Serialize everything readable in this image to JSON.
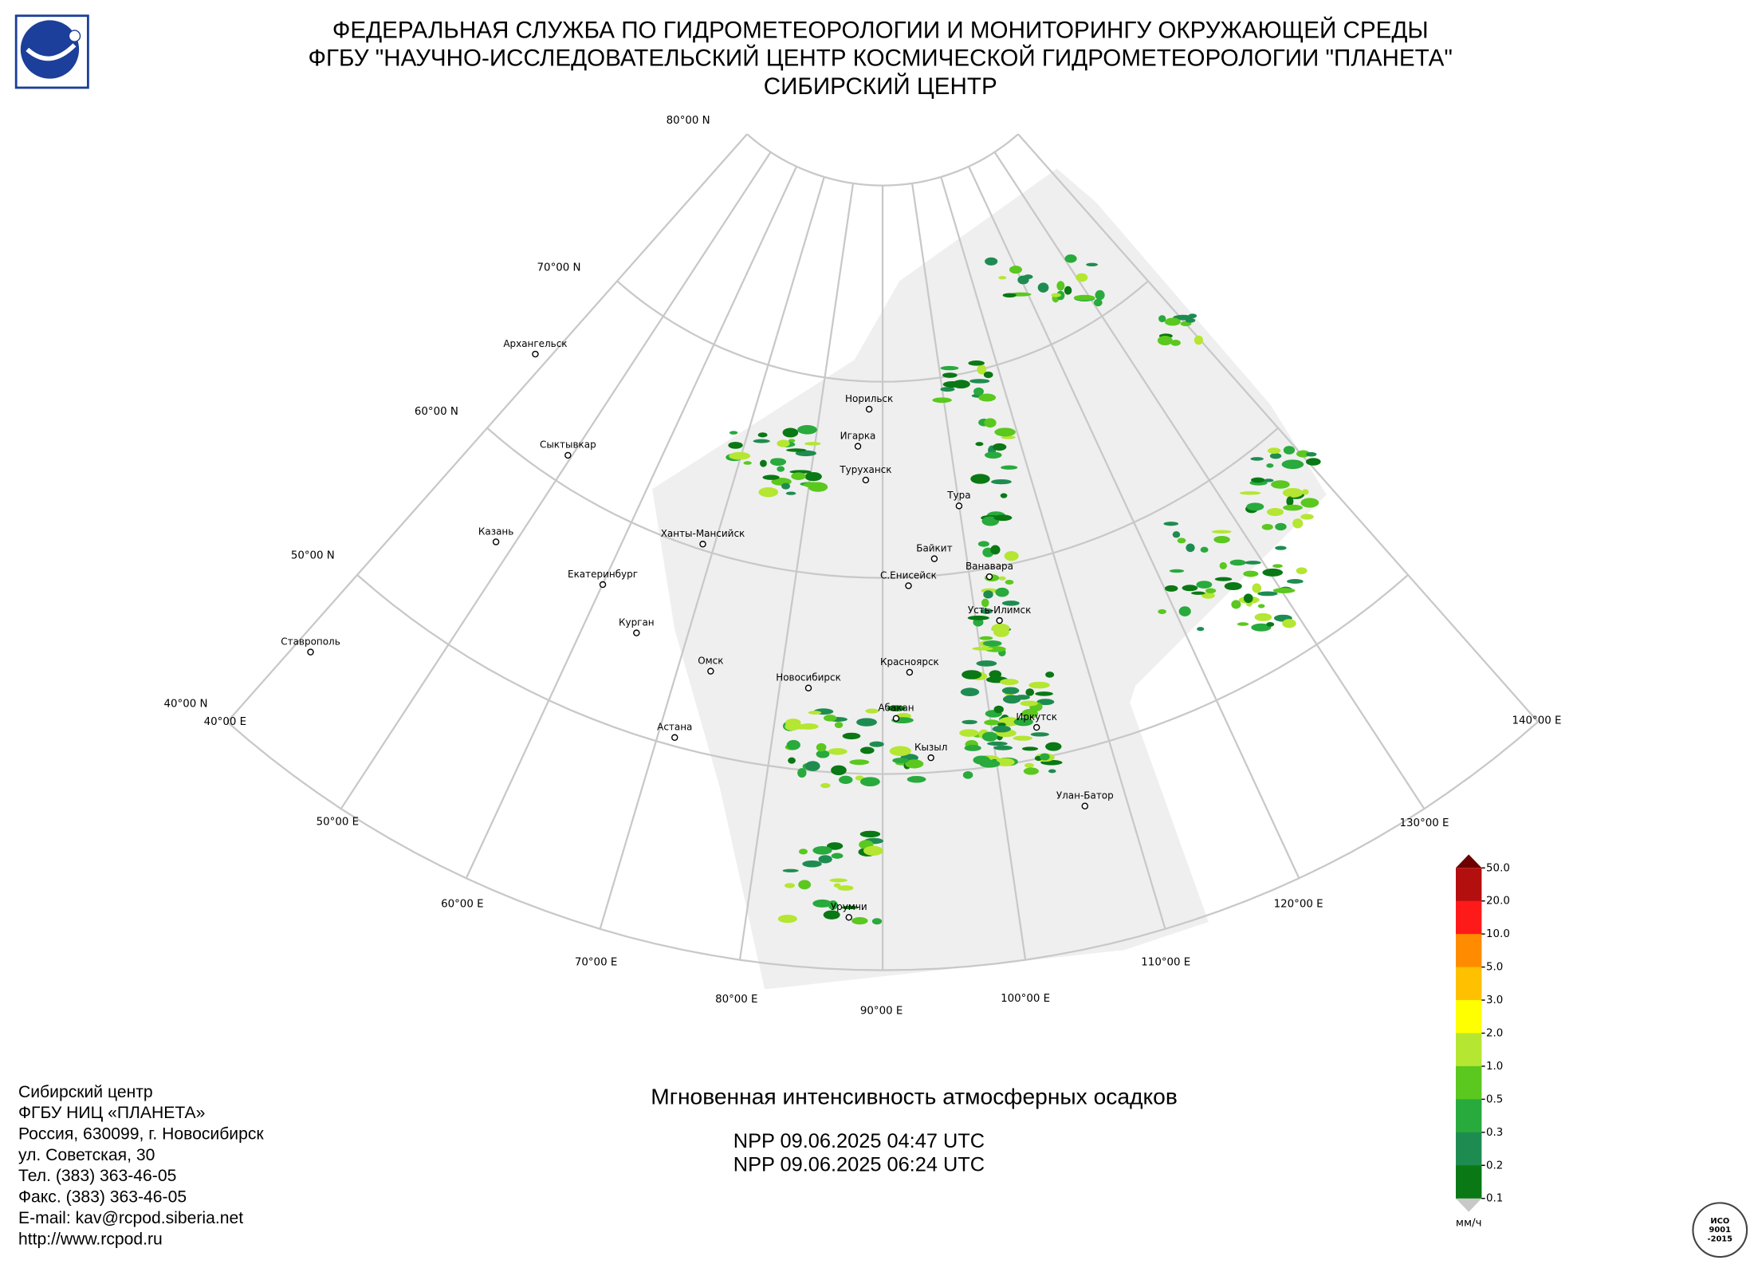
{
  "header": {
    "lines": [
      "ФЕДЕРАЛЬНАЯ СЛУЖБА ПО ГИДРОМЕТЕОРОЛОГИИ И МОНИТОРИНГУ ОКРУЖАЮЩЕЙ СРЕДЫ",
      "ФГБУ \"НАУЧНО-ИССЛЕДОВАТЕЛЬСКИЙ ЦЕНТР КОСМИЧЕСКОЙ ГИДРОМЕТЕОРОЛОГИИ \"ПЛАНЕТА\"",
      "СИБИРСКИЙ ЦЕНТР"
    ]
  },
  "map": {
    "lat_labels": [
      "80°00 N",
      "70°00 N",
      "60°00 N",
      "50°00 N",
      "40°00 N"
    ],
    "lon_labels": [
      "40°00 E",
      "50°00 E",
      "60°00 E",
      "70°00 E",
      "80°00 E",
      "90°00 E",
      "100°00 E",
      "110°00 E",
      "120°00 E",
      "130°00 E",
      "140°00 E"
    ],
    "cities": [
      "Архангельск",
      "Сыктывкар",
      "Казань",
      "Екатеринбург",
      "Курган",
      "Ставрополь",
      "Ханты-Мансийск",
      "Омск",
      "Астана",
      "Новосибирск",
      "Норильск",
      "Игарка",
      "Туруханск",
      "Тура",
      "Байкит",
      "Ванавара",
      "С.Енисейск",
      "Усть-Илимск",
      "Красноярск",
      "Абакан",
      "Иркутск",
      "Кызыл",
      "Улан-Батор",
      "Урумчи"
    ]
  },
  "product": {
    "title": "Мгновенная интенсивность атмосферных осадков",
    "passes": [
      "NPP 09.06.2025  04:47 UTC",
      "NPP 09.06.2025  06:24 UTC"
    ]
  },
  "legend": {
    "ticks": [
      {
        "value": 50,
        "label": "50.0"
      },
      {
        "value": 20,
        "label": "20.0"
      },
      {
        "value": 10,
        "label": "10.0"
      },
      {
        "value": 5,
        "label": "5.0"
      },
      {
        "value": 3,
        "label": "3.0"
      },
      {
        "value": 2,
        "label": "2.0"
      },
      {
        "value": 1,
        "label": "1.0"
      },
      {
        "value": 0.5,
        "label": "0.5"
      },
      {
        "value": 0.3,
        "label": "0.3"
      },
      {
        "value": 0.2,
        "label": "0.2"
      },
      {
        "value": 0.1,
        "label": "0.1"
      }
    ],
    "colors": [
      "#b40f0f",
      "#ff1a1a",
      "#ff8c00",
      "#ffc000",
      "#ffff00",
      "#b4e632",
      "#5ac81e",
      "#28aa3c",
      "#1e8c50",
      "#0a7814"
    ],
    "over_color": "#6e0000",
    "under_color": "#c8c8c8",
    "unit": "мм/ч"
  },
  "contact": {
    "lines": [
      "Сибирский центр",
      "ФГБУ НИЦ «ПЛАНЕТА»",
      "Россия, 630099, г. Новосибирск",
      "ул. Советская, 30",
      "Тел. (383) 363-46-05",
      "Факс. (383) 363-46-05",
      "E-mail: kav@rcpod.siberia.net",
      "http://www.rcpod.ru"
    ]
  },
  "iso_logo": {
    "lines": [
      "ИСО",
      "9001",
      "-2015"
    ]
  }
}
